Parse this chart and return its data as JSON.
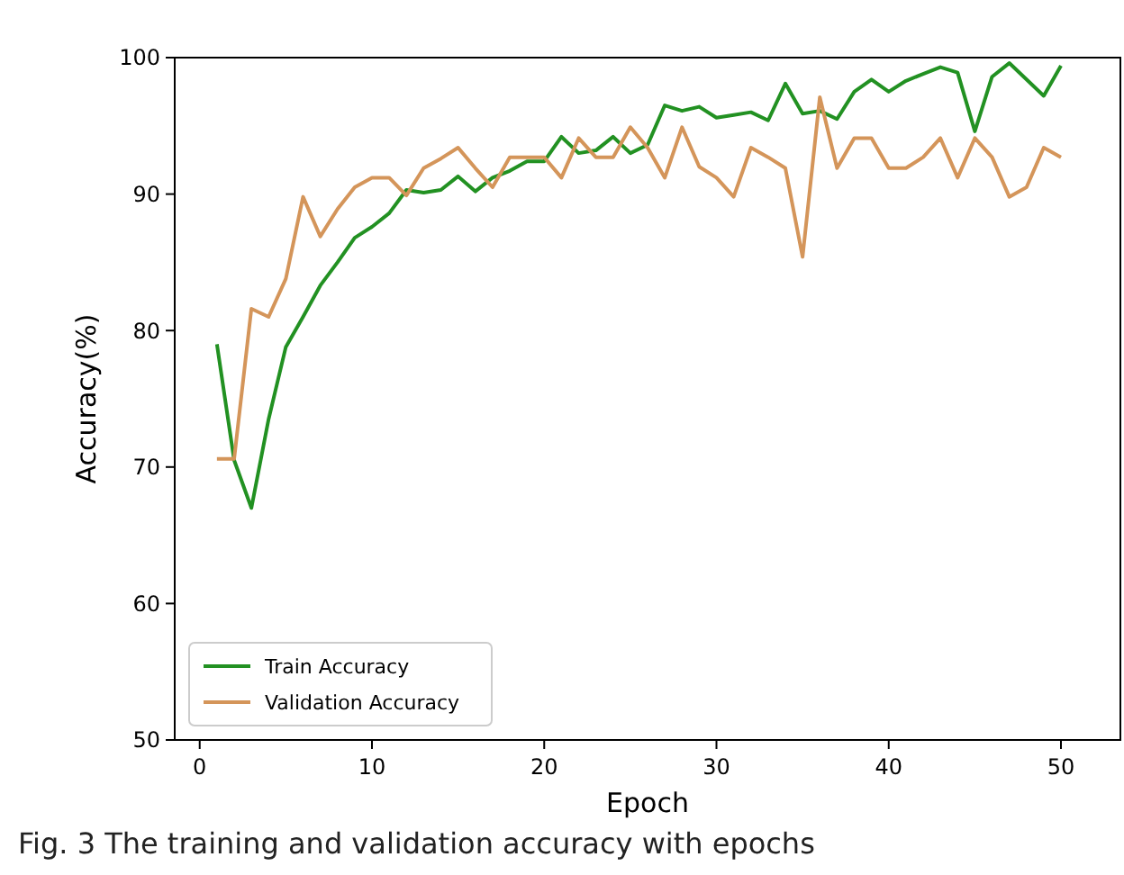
{
  "chart_data": {
    "type": "line",
    "title": "Fig. 3  The training and validation accuracy with epochs",
    "xlabel": "Epoch",
    "ylabel": "Accuracy(%)",
    "x": [
      1,
      2,
      3,
      4,
      5,
      6,
      7,
      8,
      9,
      10,
      11,
      12,
      13,
      14,
      15,
      16,
      17,
      18,
      19,
      20,
      21,
      22,
      23,
      24,
      25,
      26,
      27,
      28,
      29,
      30,
      31,
      32,
      33,
      34,
      35,
      36,
      37,
      38,
      39,
      40,
      41,
      42,
      43,
      44,
      45,
      46,
      47,
      48,
      49,
      50
    ],
    "series": [
      {
        "name": "Train Accuracy",
        "color": "#229122",
        "values": [
          79,
          70.5,
          67,
          73.5,
          78.8,
          81,
          83.3,
          85,
          86.8,
          87.6,
          88.6,
          90.3,
          90.1,
          90.3,
          91.3,
          90.2,
          91.2,
          91.7,
          92.4,
          92.4,
          94.2,
          93,
          93.2,
          94.2,
          93,
          93.6,
          96.5,
          96.1,
          96.4,
          95.6,
          95.8,
          96,
          95.4,
          98.1,
          95.9,
          96.1,
          95.5,
          97.5,
          98.4,
          97.5,
          98.3,
          98.8,
          99.3,
          98.9,
          94.6,
          98.6,
          99.6,
          98.4,
          97.2,
          99.4
        ]
      },
      {
        "name": "Validation Accuracy",
        "color": "#d4955a",
        "values": [
          70.6,
          70.6,
          81.6,
          81,
          83.8,
          89.8,
          86.9,
          88.9,
          90.5,
          91.2,
          91.2,
          89.9,
          91.9,
          92.6,
          93.4,
          91.9,
          90.5,
          92.7,
          92.7,
          92.7,
          91.2,
          94.1,
          92.7,
          92.7,
          94.9,
          93.4,
          91.2,
          94.9,
          92,
          91.2,
          89.8,
          93.4,
          92.7,
          91.9,
          85.4,
          97.1,
          91.9,
          94.1,
          94.1,
          91.9,
          91.9,
          92.7,
          94.1,
          91.2,
          94.1,
          92.7,
          89.8,
          90.5,
          93.4,
          92.7
        ]
      }
    ],
    "xlim": [
      -1.45,
      53.45
    ],
    "xticks": [
      0,
      10,
      20,
      30,
      40,
      50
    ],
    "ylim": [
      50,
      100
    ],
    "yticks": [
      50,
      60,
      70,
      80,
      90,
      100
    ],
    "legend": "bottom left",
    "grid": false,
    "marker": "none",
    "line_style": "solid"
  }
}
